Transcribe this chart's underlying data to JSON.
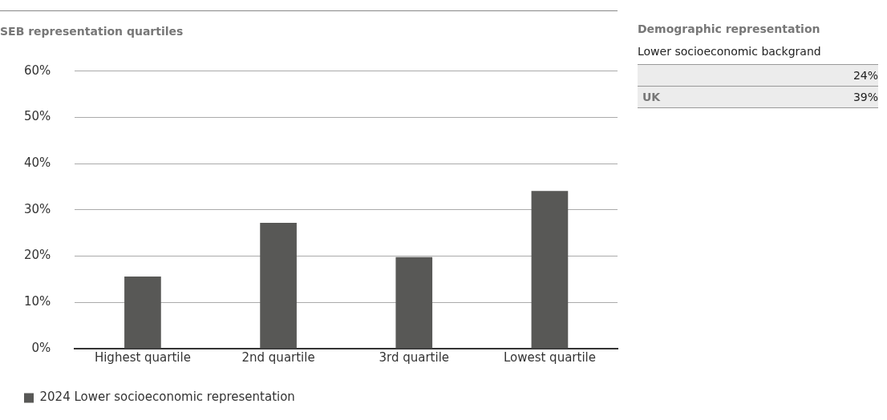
{
  "chart_data": [
    {
      "type": "bar",
      "title": "SEB representation quartiles",
      "categories": [
        "Highest quartile",
        "2nd quartile",
        "3rd quartile",
        "Lowest quartile"
      ],
      "series": [
        {
          "name": "2024 Lower socioeconomic representation",
          "color": "#585856",
          "values": [
            15.6,
            27.2,
            19.8,
            34.1
          ]
        }
      ],
      "ylim": [
        0,
        60
      ],
      "yticks": [
        {
          "value": 0,
          "label": "0%"
        },
        {
          "value": 10,
          "label": "10%"
        },
        {
          "value": 20,
          "label": "20%"
        },
        {
          "value": 30,
          "label": "30%"
        },
        {
          "value": 40,
          "label": "40%"
        },
        {
          "value": 50,
          "label": "50%"
        },
        {
          "value": 60,
          "label": "60%"
        }
      ],
      "grid": "y",
      "legend": "bottom left"
    },
    {
      "type": "other",
      "title": "Demographic representation",
      "subtitle": "Lower socioeconomic backgrand",
      "categories": [
        null,
        "UK"
      ],
      "value_labels": [
        "24%",
        "39%"
      ]
    }
  ]
}
